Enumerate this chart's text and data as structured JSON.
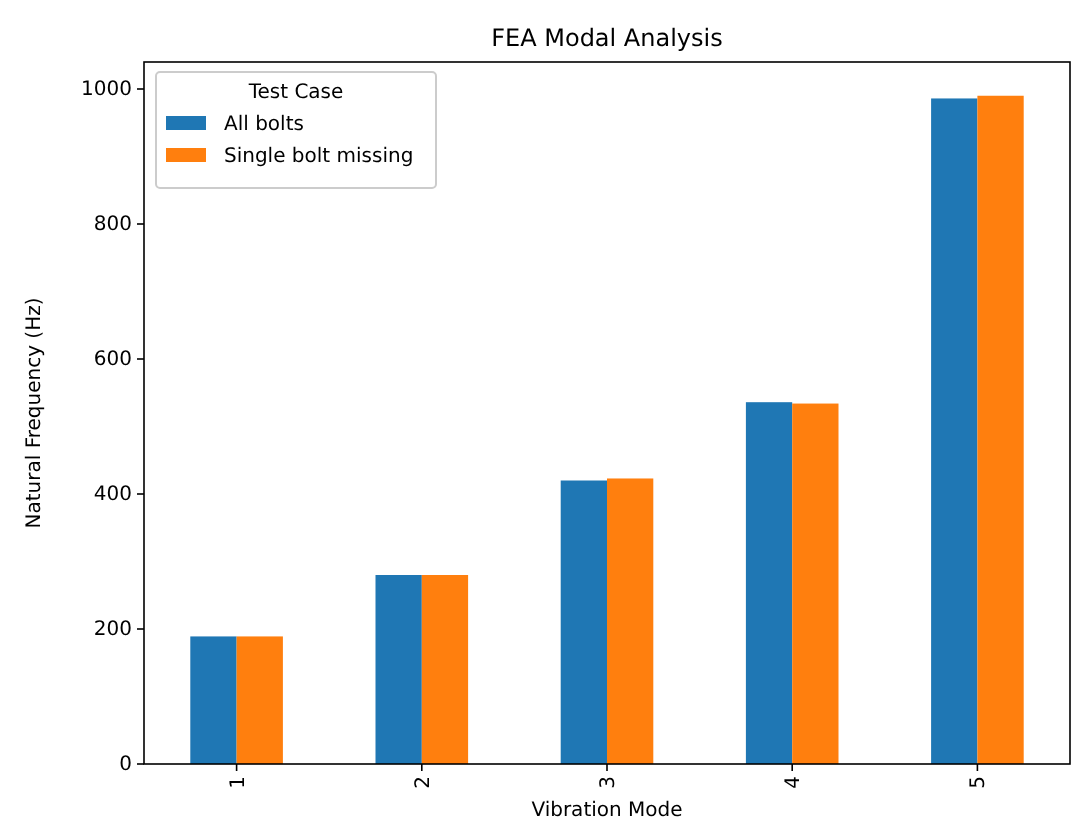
{
  "chart_data": {
    "type": "bar",
    "title": "FEA Modal Analysis",
    "xlabel": "Vibration Mode",
    "ylabel": "Natural Frequency (Hz)",
    "legend_title": "Test Case",
    "categories": [
      "1",
      "2",
      "3",
      "4",
      "5"
    ],
    "series": [
      {
        "name": "All bolts",
        "color": "#1f77b4",
        "values": [
          189,
          280,
          420,
          536,
          986
        ]
      },
      {
        "name": "Single bolt missing",
        "color": "#ff7f0e",
        "values": [
          189,
          280,
          423,
          534,
          990
        ]
      }
    ],
    "ylim": [
      0,
      1040
    ],
    "yticks": [
      0,
      200,
      400,
      600,
      800,
      1000
    ],
    "legend": "top left"
  }
}
